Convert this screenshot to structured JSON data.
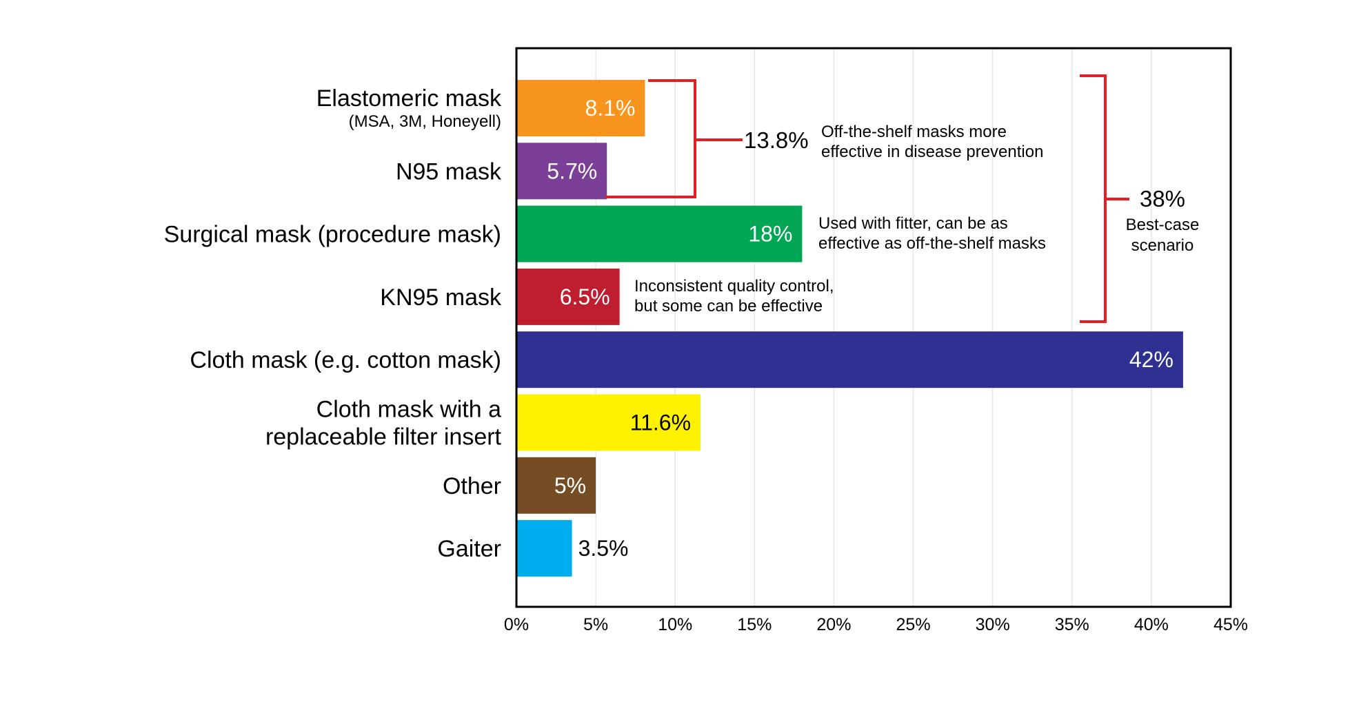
{
  "chart_data": {
    "type": "bar",
    "orientation": "horizontal",
    "categories": [
      [
        "Elastomeric mask",
        "(MSA, 3M, Honeyell)"
      ],
      [
        "N95 mask"
      ],
      [
        "Surgical mask (procedure mask)"
      ],
      [
        "KN95 mask"
      ],
      [
        "Cloth mask (e.g. cotton mask)"
      ],
      [
        "Cloth mask with a",
        "replaceable filter insert"
      ],
      [
        "Other"
      ],
      [
        "Gaiter"
      ]
    ],
    "values": [
      8.1,
      5.7,
      18,
      6.5,
      42,
      11.6,
      5,
      3.5
    ],
    "data_labels": [
      "8.1%",
      "5.7%",
      "18%",
      "6.5%",
      "42%",
      "11.6%",
      "5%",
      "3.5%"
    ],
    "colors": [
      "#F7941D",
      "#7B3F98",
      "#00A651",
      "#BE1E2D",
      "#2E3192",
      "#FFF200",
      "#754C24",
      "#00AEEF"
    ],
    "label_colors": [
      "#ffffff",
      "#ffffff",
      "#ffffff",
      "#ffffff",
      "#ffffff",
      "#000000",
      "#ffffff",
      "#000000"
    ],
    "xlim": [
      0,
      45
    ],
    "xticks": [
      "0%",
      "5%",
      "10%",
      "15%",
      "20%",
      "25%",
      "30%",
      "35%",
      "40%",
      "45%"
    ],
    "grid": "vertical",
    "bracket_color": "#E31E24",
    "annotations": {
      "group_small": {
        "value": "13.8%",
        "lines": [
          "Off-the-shelf masks more",
          "effective in disease prevention"
        ]
      },
      "surgical": {
        "lines": [
          "Used with fitter, can be as",
          "effective as off-the-shelf masks"
        ]
      },
      "kn95": {
        "lines": [
          "Inconsistent quality control,",
          "but some can be effective"
        ]
      },
      "group_large": {
        "value": "38%",
        "lines": [
          "Best-case",
          "scenario"
        ]
      }
    }
  }
}
